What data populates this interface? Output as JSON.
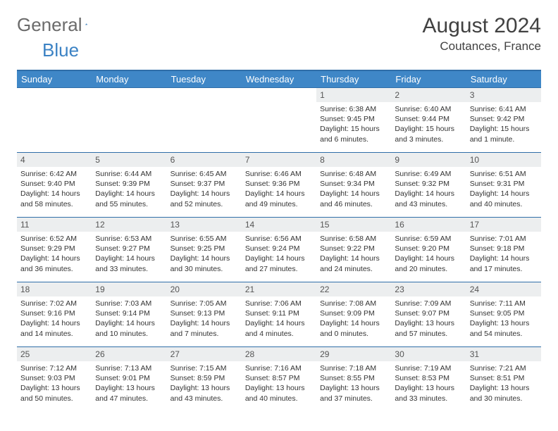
{
  "logo": {
    "text_gray": "General",
    "text_blue": "Blue"
  },
  "header": {
    "month_title": "August 2024",
    "location": "Coutances, France"
  },
  "colors": {
    "header_bg": "#3f87c7",
    "border": "#2f6ea8",
    "daynum_bg": "#eceeef",
    "logo_blue": "#3b82c4",
    "logo_gray": "#6b6b6b"
  },
  "weekdays": [
    "Sunday",
    "Monday",
    "Tuesday",
    "Wednesday",
    "Thursday",
    "Friday",
    "Saturday"
  ],
  "weeks": [
    [
      null,
      null,
      null,
      null,
      {
        "n": "1",
        "sr": "6:38 AM",
        "ss": "9:45 PM",
        "dl": "15 hours and 6 minutes."
      },
      {
        "n": "2",
        "sr": "6:40 AM",
        "ss": "9:44 PM",
        "dl": "15 hours and 3 minutes."
      },
      {
        "n": "3",
        "sr": "6:41 AM",
        "ss": "9:42 PM",
        "dl": "15 hours and 1 minute."
      }
    ],
    [
      {
        "n": "4",
        "sr": "6:42 AM",
        "ss": "9:40 PM",
        "dl": "14 hours and 58 minutes."
      },
      {
        "n": "5",
        "sr": "6:44 AM",
        "ss": "9:39 PM",
        "dl": "14 hours and 55 minutes."
      },
      {
        "n": "6",
        "sr": "6:45 AM",
        "ss": "9:37 PM",
        "dl": "14 hours and 52 minutes."
      },
      {
        "n": "7",
        "sr": "6:46 AM",
        "ss": "9:36 PM",
        "dl": "14 hours and 49 minutes."
      },
      {
        "n": "8",
        "sr": "6:48 AM",
        "ss": "9:34 PM",
        "dl": "14 hours and 46 minutes."
      },
      {
        "n": "9",
        "sr": "6:49 AM",
        "ss": "9:32 PM",
        "dl": "14 hours and 43 minutes."
      },
      {
        "n": "10",
        "sr": "6:51 AM",
        "ss": "9:31 PM",
        "dl": "14 hours and 40 minutes."
      }
    ],
    [
      {
        "n": "11",
        "sr": "6:52 AM",
        "ss": "9:29 PM",
        "dl": "14 hours and 36 minutes."
      },
      {
        "n": "12",
        "sr": "6:53 AM",
        "ss": "9:27 PM",
        "dl": "14 hours and 33 minutes."
      },
      {
        "n": "13",
        "sr": "6:55 AM",
        "ss": "9:25 PM",
        "dl": "14 hours and 30 minutes."
      },
      {
        "n": "14",
        "sr": "6:56 AM",
        "ss": "9:24 PM",
        "dl": "14 hours and 27 minutes."
      },
      {
        "n": "15",
        "sr": "6:58 AM",
        "ss": "9:22 PM",
        "dl": "14 hours and 24 minutes."
      },
      {
        "n": "16",
        "sr": "6:59 AM",
        "ss": "9:20 PM",
        "dl": "14 hours and 20 minutes."
      },
      {
        "n": "17",
        "sr": "7:01 AM",
        "ss": "9:18 PM",
        "dl": "14 hours and 17 minutes."
      }
    ],
    [
      {
        "n": "18",
        "sr": "7:02 AM",
        "ss": "9:16 PM",
        "dl": "14 hours and 14 minutes."
      },
      {
        "n": "19",
        "sr": "7:03 AM",
        "ss": "9:14 PM",
        "dl": "14 hours and 10 minutes."
      },
      {
        "n": "20",
        "sr": "7:05 AM",
        "ss": "9:13 PM",
        "dl": "14 hours and 7 minutes."
      },
      {
        "n": "21",
        "sr": "7:06 AM",
        "ss": "9:11 PM",
        "dl": "14 hours and 4 minutes."
      },
      {
        "n": "22",
        "sr": "7:08 AM",
        "ss": "9:09 PM",
        "dl": "14 hours and 0 minutes."
      },
      {
        "n": "23",
        "sr": "7:09 AM",
        "ss": "9:07 PM",
        "dl": "13 hours and 57 minutes."
      },
      {
        "n": "24",
        "sr": "7:11 AM",
        "ss": "9:05 PM",
        "dl": "13 hours and 54 minutes."
      }
    ],
    [
      {
        "n": "25",
        "sr": "7:12 AM",
        "ss": "9:03 PM",
        "dl": "13 hours and 50 minutes."
      },
      {
        "n": "26",
        "sr": "7:13 AM",
        "ss": "9:01 PM",
        "dl": "13 hours and 47 minutes."
      },
      {
        "n": "27",
        "sr": "7:15 AM",
        "ss": "8:59 PM",
        "dl": "13 hours and 43 minutes."
      },
      {
        "n": "28",
        "sr": "7:16 AM",
        "ss": "8:57 PM",
        "dl": "13 hours and 40 minutes."
      },
      {
        "n": "29",
        "sr": "7:18 AM",
        "ss": "8:55 PM",
        "dl": "13 hours and 37 minutes."
      },
      {
        "n": "30",
        "sr": "7:19 AM",
        "ss": "8:53 PM",
        "dl": "13 hours and 33 minutes."
      },
      {
        "n": "31",
        "sr": "7:21 AM",
        "ss": "8:51 PM",
        "dl": "13 hours and 30 minutes."
      }
    ]
  ],
  "labels": {
    "sunrise": "Sunrise:",
    "sunset": "Sunset:",
    "daylight": "Daylight:"
  }
}
